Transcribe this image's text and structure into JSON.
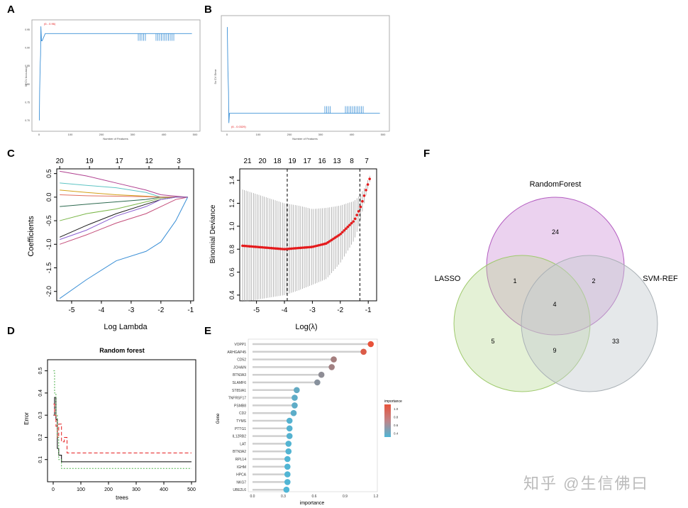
{
  "panels": {
    "A": "A",
    "B": "B",
    "C": "C",
    "D": "D",
    "E": "E",
    "F": "F"
  },
  "colors": {
    "svm_line": "#3a8fd6",
    "rf_red": "#e8523a",
    "rf_blue": "#4fb6d6",
    "mean_red": "#e41a1c",
    "venn_rf": "#c77dd1",
    "venn_lasso": "#b3d88a",
    "venn_svm": "#c6ccd0"
  },
  "panelA": {
    "ylabel": "5x CV Accuracy",
    "xlabel": "Number of Features",
    "annotation": "(6 - 0.96)",
    "xticks": [
      "0",
      "100",
      "200",
      "300",
      "400",
      "500"
    ],
    "yticks": [
      "0.70",
      "0.75",
      "0.80",
      "0.85",
      "0.90",
      "0.95"
    ]
  },
  "panelB": {
    "ylabel": "5x CV Error",
    "xlabel": "Number of Features",
    "annotation": "(6 - 0.0329)",
    "xticks": [
      "0",
      "100",
      "200",
      "300",
      "400",
      "500"
    ]
  },
  "panelC1": {
    "ylabel": "Coefficients",
    "xlabel": "Log Lambda",
    "top_ticks": [
      "20",
      "19",
      "17",
      "12",
      "3"
    ],
    "xticks": [
      "-5",
      "-4",
      "-3",
      "-2",
      "-1"
    ],
    "yticks": [
      "0.5",
      "0.0",
      "-0.5",
      "-1.0",
      "-1.5",
      "-2.0"
    ]
  },
  "panelC2": {
    "ylabel": "Binomial Deviance",
    "xlabel": "Log(λ)",
    "top_ticks": [
      "21",
      "20",
      "18",
      "19",
      "17",
      "16",
      "13",
      "8",
      "7"
    ],
    "xticks": [
      "-5",
      "-4",
      "-3",
      "-2",
      "-1"
    ],
    "yticks": [
      "0.4",
      "0.6",
      "0.8",
      "1.0",
      "1.2",
      "1.4"
    ]
  },
  "panelD": {
    "title": "Random forest",
    "ylabel": "Error",
    "xlabel": "trees",
    "xticks": [
      "0",
      "100",
      "200",
      "300",
      "400",
      "500"
    ],
    "yticks": [
      "0.5",
      "0.4",
      "0.3",
      "0.2",
      "0.1"
    ]
  },
  "panelE": {
    "ylabel": "Gene",
    "xlabel": "importance",
    "legend_title": "importance",
    "legend_ticks": [
      "1.0",
      "0.8",
      "0.6",
      "0.4"
    ],
    "xticks": [
      "0.0",
      "0.3",
      "0.6",
      "0.9",
      "1.2"
    ]
  },
  "panelF": {
    "sets": [
      "RandomForest",
      "LASSO",
      "SVM-REF"
    ],
    "regions": {
      "rf_only": "24",
      "lasso_only": "5",
      "svm_only": "33",
      "lasso_rf": "1",
      "rf_svm": "2",
      "lasso_svm": "9",
      "all": "4"
    }
  },
  "watermark": "知乎 @生信佛曰",
  "chart_data": [
    {
      "type": "line",
      "title": "",
      "xlabel": "Number of Features",
      "ylabel": "5x CV Accuracy",
      "xlim": [
        0,
        500
      ],
      "ylim": [
        0.68,
        0.97
      ],
      "series": [
        {
          "name": "accuracy",
          "x": [
            1,
            2,
            3,
            4,
            5,
            6,
            8,
            10,
            15,
            20,
            30,
            50,
            100,
            200,
            300,
            400,
            490
          ],
          "values": [
            0.7,
            0.78,
            0.82,
            0.86,
            0.88,
            0.96,
            0.92,
            0.92,
            0.93,
            0.94,
            0.94,
            0.94,
            0.94,
            0.94,
            0.94,
            0.94,
            0.94
          ]
        }
      ]
    },
    {
      "type": "line",
      "title": "",
      "xlabel": "Number of Features",
      "ylabel": "5x CV Error",
      "xlim": [
        0,
        500
      ],
      "ylim": [
        0.02,
        0.32
      ],
      "series": [
        {
          "name": "error",
          "x": [
            1,
            3,
            5,
            6,
            8,
            10,
            20,
            30,
            50,
            100,
            200,
            300,
            400,
            490
          ],
          "values": [
            0.3,
            0.18,
            0.12,
            0.033,
            0.06,
            0.06,
            0.06,
            0.06,
            0.06,
            0.06,
            0.06,
            0.06,
            0.06,
            0.06
          ]
        }
      ]
    },
    {
      "type": "line",
      "title": "",
      "xlabel": "Log Lambda",
      "ylabel": "Coefficients",
      "xlim": [
        -5.5,
        -0.9
      ],
      "ylim": [
        -2.2,
        0.6
      ],
      "x": [
        -5.4,
        -4.5,
        -3.5,
        -2.5,
        -2.0,
        -1.5,
        -1.1
      ],
      "series": [
        {
          "name": "g1",
          "values": [
            -2.15,
            -1.75,
            -1.35,
            -1.15,
            -0.95,
            -0.5,
            0.0
          ]
        },
        {
          "name": "g2",
          "values": [
            -1.0,
            -0.8,
            -0.55,
            -0.35,
            -0.2,
            -0.05,
            0.0
          ]
        },
        {
          "name": "g3",
          "values": [
            -0.85,
            -0.6,
            -0.35,
            -0.15,
            -0.05,
            0.0,
            0.0
          ]
        },
        {
          "name": "g4",
          "values": [
            -0.5,
            -0.35,
            -0.25,
            -0.1,
            -0.02,
            0.0,
            0.0
          ]
        },
        {
          "name": "g5",
          "values": [
            0.55,
            0.45,
            0.3,
            0.15,
            0.05,
            0.02,
            0.0
          ]
        },
        {
          "name": "g6",
          "values": [
            0.3,
            0.25,
            0.2,
            0.1,
            0.0,
            0.0,
            0.0
          ]
        },
        {
          "name": "g7",
          "values": [
            0.15,
            0.1,
            0.05,
            0.02,
            0.0,
            0.0,
            0.0
          ]
        },
        {
          "name": "g8",
          "values": [
            -0.2,
            -0.15,
            -0.1,
            -0.05,
            0.0,
            0.0,
            0.0
          ]
        },
        {
          "name": "g9",
          "values": [
            0.05,
            0.03,
            0.02,
            0.01,
            0.0,
            0.0,
            0.0
          ]
        },
        {
          "name": "g10",
          "values": [
            -0.9,
            -0.7,
            -0.4,
            -0.2,
            -0.05,
            0.0,
            0.0
          ]
        }
      ]
    },
    {
      "type": "line",
      "title": "",
      "xlabel": "Log(λ)",
      "ylabel": "Binomial Deviance",
      "xlim": [
        -5.6,
        -0.7
      ],
      "ylim": [
        0.35,
        1.5
      ],
      "x": [
        -5.5,
        -5,
        -4.5,
        -4,
        -3.5,
        -3,
        -2.5,
        -2,
        -1.5,
        -1.3,
        -1.1,
        -0.9
      ],
      "series": [
        {
          "name": "mean",
          "values": [
            0.83,
            0.82,
            0.81,
            0.8,
            0.81,
            0.82,
            0.85,
            0.93,
            1.05,
            1.15,
            1.3,
            1.45
          ]
        },
        {
          "name": "upper",
          "values": [
            1.32,
            1.28,
            1.24,
            1.2,
            1.18,
            1.15,
            1.16,
            1.18,
            1.22,
            1.27,
            1.35,
            1.47
          ]
        },
        {
          "name": "lower",
          "values": [
            0.34,
            0.36,
            0.38,
            0.4,
            0.44,
            0.49,
            0.54,
            0.68,
            0.88,
            1.03,
            1.25,
            1.43
          ]
        }
      ],
      "vlines": [
        -3.9,
        -1.3
      ]
    },
    {
      "type": "line",
      "title": "Random forest",
      "xlabel": "trees",
      "ylabel": "Error",
      "xlim": [
        0,
        500
      ],
      "ylim": [
        0,
        0.55
      ],
      "x": [
        1,
        5,
        10,
        15,
        20,
        30,
        40,
        50,
        100,
        300,
        500
      ],
      "series": [
        {
          "name": "OOB",
          "values": [
            0.3,
            0.38,
            0.28,
            0.15,
            0.12,
            0.09,
            0.09,
            0.09,
            0.09,
            0.09,
            0.09
          ]
        },
        {
          "name": "class1",
          "values": [
            0.35,
            0.3,
            0.25,
            0.2,
            0.26,
            0.18,
            0.2,
            0.13,
            0.13,
            0.13,
            0.13
          ]
        },
        {
          "name": "class2",
          "values": [
            0.5,
            0.4,
            0.3,
            0.2,
            0.1,
            0.06,
            0.06,
            0.06,
            0.06,
            0.06,
            0.06
          ]
        }
      ]
    },
    {
      "type": "scatter",
      "title": "",
      "xlabel": "importance",
      "ylabel": "Gene",
      "xlim": [
        0,
        1.2
      ],
      "categories": [
        "VOPP1",
        "ARHGAP45",
        "CD52",
        "JCHAIN",
        "BTN3A3",
        "SLAMF6",
        "ST8SIA1",
        "TNFRSF17",
        "PSMB8",
        "CD2",
        "TYMS",
        "PTTG1",
        "IL12RB2",
        "LAT",
        "BTN3A2",
        "RPL14",
        "IGHM",
        "HPCA",
        "NKG7",
        "UBE2L6"
      ],
      "values": [
        1.15,
        1.08,
        0.79,
        0.77,
        0.67,
        0.63,
        0.43,
        0.41,
        0.41,
        0.4,
        0.36,
        0.36,
        0.36,
        0.35,
        0.35,
        0.34,
        0.34,
        0.34,
        0.34,
        0.33
      ]
    },
    {
      "type": "venn",
      "title": "",
      "sets": [
        "RandomForest",
        "LASSO",
        "SVM-REF"
      ],
      "regions": {
        "RandomForest only": 24,
        "LASSO only": 5,
        "SVM-REF only": 33,
        "LASSO∩RandomForest": 1,
        "RandomForest∩SVM-REF": 2,
        "LASSO∩SVM-REF": 9,
        "all three": 4
      }
    }
  ]
}
